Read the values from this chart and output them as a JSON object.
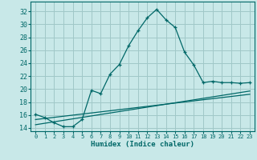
{
  "title": "",
  "xlabel": "Humidex (Indice chaleur)",
  "background_color": "#c8e8e8",
  "grid_color": "#a0c8c8",
  "line_color": "#006868",
  "xlim": [
    -0.5,
    23.5
  ],
  "ylim": [
    13.5,
    33.5
  ],
  "xticks": [
    0,
    1,
    2,
    3,
    4,
    5,
    6,
    7,
    8,
    9,
    10,
    11,
    12,
    13,
    14,
    15,
    16,
    17,
    18,
    19,
    20,
    21,
    22,
    23
  ],
  "yticks": [
    14,
    16,
    18,
    20,
    22,
    24,
    26,
    28,
    30,
    32
  ],
  "main_x": [
    0,
    1,
    2,
    3,
    4,
    5,
    6,
    7,
    8,
    9,
    10,
    11,
    12,
    13,
    14,
    15,
    16,
    17,
    18,
    19,
    20,
    21,
    22,
    23
  ],
  "main_y": [
    16.1,
    15.6,
    14.8,
    14.2,
    14.2,
    15.3,
    19.8,
    19.3,
    22.3,
    23.8,
    26.7,
    29.0,
    31.0,
    32.3,
    30.7,
    29.5,
    25.7,
    23.7,
    21.0,
    21.2,
    21.0,
    21.0,
    20.9,
    21.0
  ],
  "line1_x": [
    0,
    23
  ],
  "line1_y": [
    14.5,
    19.7
  ],
  "line2_x": [
    0,
    23
  ],
  "line2_y": [
    15.3,
    19.2
  ]
}
